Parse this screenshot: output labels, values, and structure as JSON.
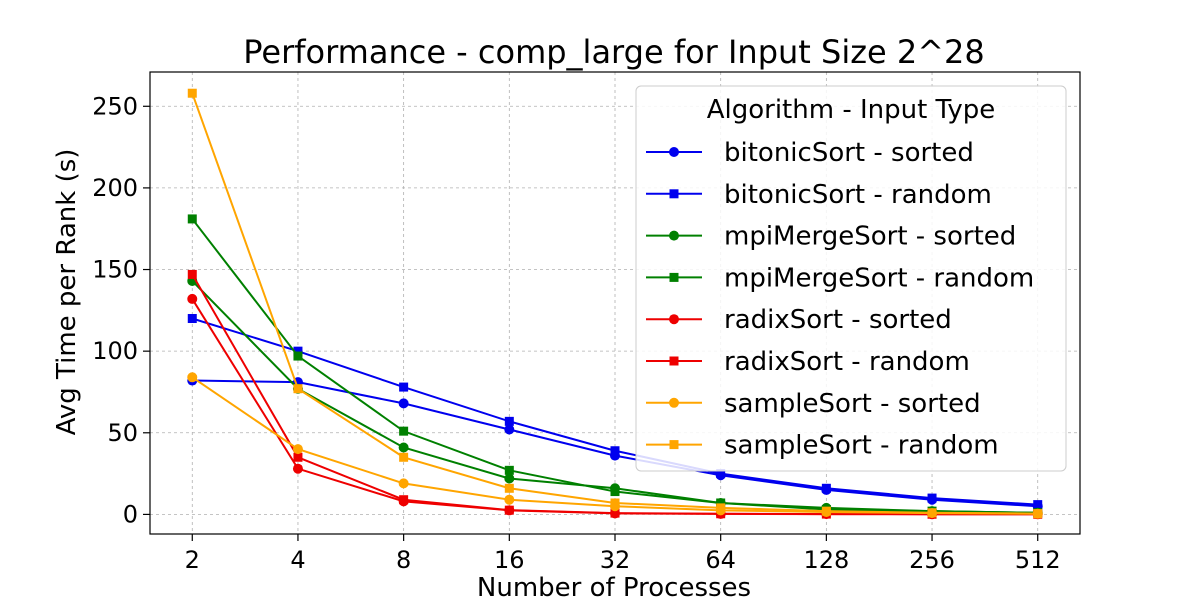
{
  "chart_data": {
    "type": "line",
    "title": "Performance - comp_large for Input Size 2^28",
    "xlabel": "Number of Processes",
    "ylabel": "Avg Time per Rank (s)",
    "x": [
      2,
      4,
      8,
      16,
      32,
      64,
      128,
      256,
      512
    ],
    "x_scale": "log2",
    "yticks": [
      0,
      50,
      100,
      150,
      200,
      250
    ],
    "ylim": [
      -12,
      271
    ],
    "grid": true,
    "legend": {
      "title": "Algorithm - Input Type",
      "placement": "top-right"
    },
    "series": [
      {
        "name": "bitonicSort - sorted",
        "color": "#0000ee",
        "marker": "circle",
        "values": [
          82,
          81,
          68,
          52,
          36,
          24,
          15,
          9,
          5
        ]
      },
      {
        "name": "bitonicSort - random",
        "color": "#0000ee",
        "marker": "square",
        "values": [
          120,
          100,
          78,
          57,
          39,
          25,
          16,
          10,
          6
        ]
      },
      {
        "name": "mpiMergeSort - sorted",
        "color": "#008000",
        "marker": "circle",
        "values": [
          143,
          77,
          41,
          22,
          16,
          7,
          4,
          2,
          1
        ]
      },
      {
        "name": "mpiMergeSort - random",
        "color": "#008000",
        "marker": "square",
        "values": [
          181,
          97,
          51,
          27,
          14,
          7,
          3,
          2,
          1
        ]
      },
      {
        "name": "radixSort - sorted",
        "color": "#ee0000",
        "marker": "circle",
        "values": [
          132,
          28,
          8,
          2.5,
          0.6,
          0.3,
          0.2,
          0.1,
          0.1
        ]
      },
      {
        "name": "radixSort - random",
        "color": "#ee0000",
        "marker": "square",
        "values": [
          147,
          35,
          9,
          2.6,
          0.8,
          0.4,
          0.2,
          0.1,
          0.1
        ]
      },
      {
        "name": "sampleSort - sorted",
        "color": "#ffa500",
        "marker": "circle",
        "values": [
          84,
          40,
          19,
          9,
          5,
          2.5,
          1.5,
          0.8,
          0.4
        ]
      },
      {
        "name": "sampleSort - random",
        "color": "#ffa500",
        "marker": "square",
        "values": [
          258,
          77,
          35,
          16,
          7,
          4,
          2,
          1,
          0.5
        ]
      }
    ]
  }
}
